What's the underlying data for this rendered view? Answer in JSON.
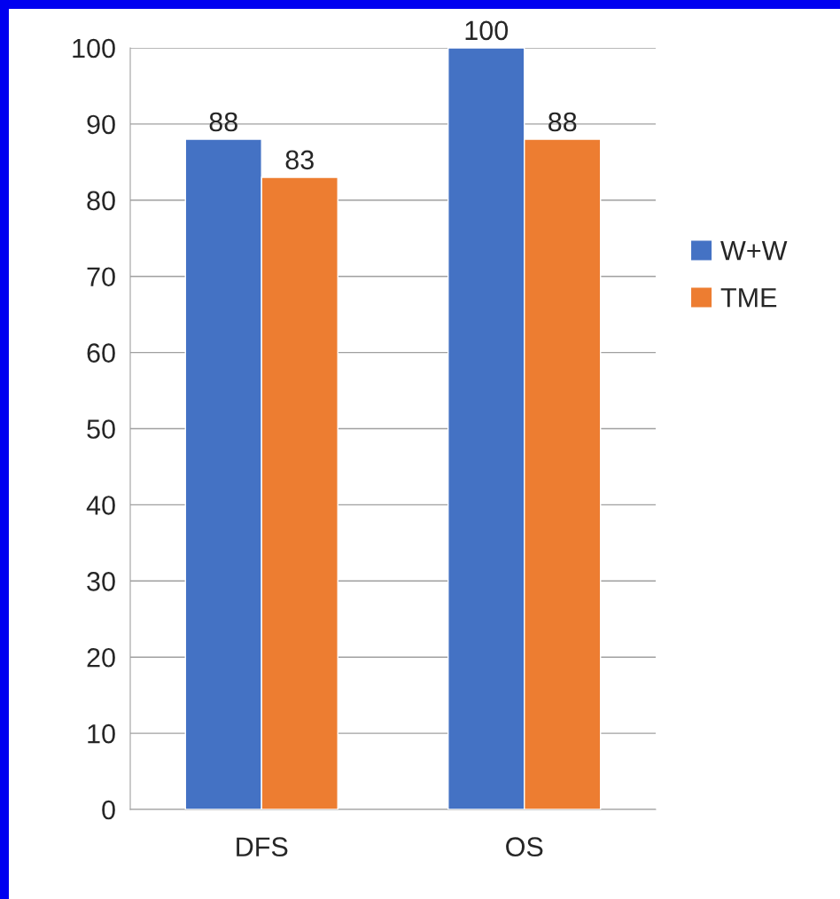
{
  "chart_data": {
    "type": "bar",
    "categories": [
      "DFS",
      "OS"
    ],
    "series": [
      {
        "name": "W+W",
        "color": "#4472c4",
        "values": [
          88,
          100
        ]
      },
      {
        "name": "TME",
        "color": "#ed7d31",
        "values": [
          83,
          88
        ]
      }
    ],
    "ylim": [
      0,
      100
    ],
    "yticks": [
      0,
      10,
      20,
      30,
      40,
      50,
      60,
      70,
      80,
      90,
      100
    ],
    "grid": "y",
    "legend": "right",
    "data_labels": true
  }
}
